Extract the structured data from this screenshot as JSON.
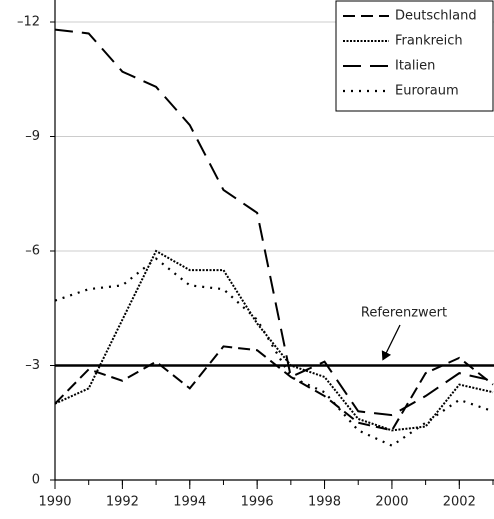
{
  "chart_data": {
    "type": "line",
    "x": [
      1990,
      1991,
      1992,
      1993,
      1994,
      1995,
      1996,
      1997,
      1998,
      1999,
      2000,
      2001,
      2002,
      2003
    ],
    "xlim": [
      1990,
      2003
    ],
    "xticks": [
      1990,
      1992,
      1994,
      1996,
      1998,
      2000,
      2002
    ],
    "ylim": [
      0,
      -12
    ],
    "yticks": [
      {
        "value": -12,
        "label": "–12"
      },
      {
        "value": -9,
        "label": "–9"
      },
      {
        "value": -6,
        "label": "–6"
      },
      {
        "value": -3,
        "label": "–3"
      },
      0
    ],
    "grid": true,
    "legend": "top-right",
    "reference": {
      "value": -3,
      "label": "Referenzwert"
    },
    "series": [
      {
        "name": "Deutschland",
        "color": "#000000",
        "style": "dashed",
        "values": [
          -2.0,
          -2.9,
          -2.6,
          -3.1,
          -2.4,
          -3.5,
          -3.4,
          -2.7,
          -2.2,
          -1.5,
          -1.3,
          -2.8,
          -3.2,
          -2.5
        ]
      },
      {
        "name": "Frankreich",
        "color": "#000000",
        "style": "dotted",
        "values": [
          -2.0,
          -2.4,
          -4.2,
          -6.0,
          -5.5,
          -5.5,
          -4.1,
          -3.0,
          -2.7,
          -1.6,
          -1.3,
          -1.4,
          -2.5,
          -2.3
        ]
      },
      {
        "name": "Italien",
        "color": "#000000",
        "style": "long-dashed",
        "values": [
          -11.8,
          -11.7,
          -10.7,
          -10.3,
          -9.3,
          -7.6,
          -7.0,
          -2.7,
          -3.1,
          -1.8,
          -1.7,
          -2.2,
          -2.8,
          -2.6
        ]
      },
      {
        "name": "Euroraum",
        "color": "#000000",
        "style": "sparse-dotted",
        "values": [
          -4.7,
          -5.0,
          -5.1,
          -5.8,
          -5.1,
          -5.0,
          -4.2,
          -2.7,
          -2.3,
          -1.3,
          -0.9,
          -1.5,
          -2.1,
          -1.8
        ]
      }
    ]
  }
}
